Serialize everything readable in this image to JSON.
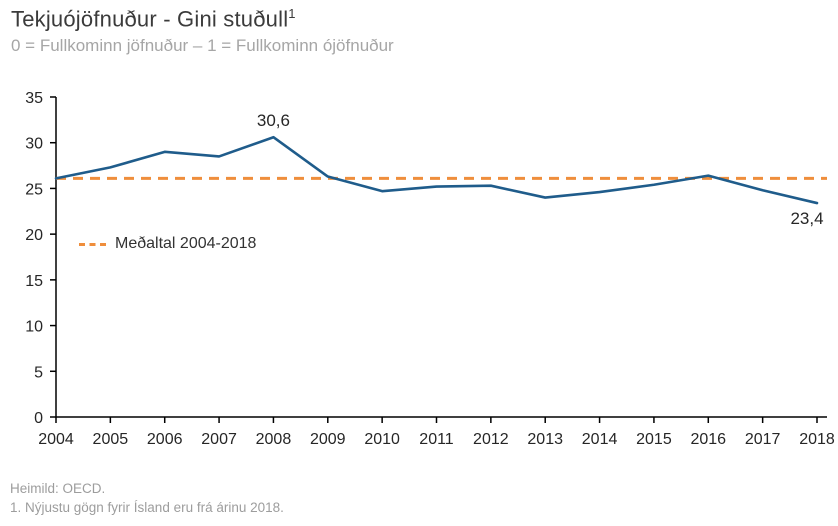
{
  "header": {
    "title": "Tekjuójöfnuður - Gini stuðull",
    "title_superscript": "1",
    "subtitle": "0 = Fullkominn jöfnuður – 1 = Fullkominn ójöfnuður"
  },
  "chart_data": {
    "type": "line",
    "title": "Tekjuójöfnuður - Gini stuðull",
    "subtitle": "0 = Fullkominn jöfnuður – 1 = Fullkominn ójöfnuður",
    "categories": [
      "2004",
      "2005",
      "2006",
      "2007",
      "2008",
      "2009",
      "2010",
      "2011",
      "2012",
      "2013",
      "2014",
      "2015",
      "2016",
      "2017",
      "2018"
    ],
    "series": [
      {
        "name": "Gini stuðull",
        "type": "line",
        "color": "#1f5c8b",
        "values": [
          26.1,
          27.3,
          29.0,
          28.5,
          30.6,
          26.3,
          24.7,
          25.2,
          25.3,
          24.0,
          24.6,
          25.4,
          26.4,
          24.8,
          23.4
        ]
      },
      {
        "name": "Meðaltal 2004-2018",
        "type": "average-dashed-line",
        "color": "#ef8e3c",
        "value": 26.1
      }
    ],
    "ylim": [
      0,
      35
    ],
    "yticks": [
      0,
      5,
      10,
      15,
      20,
      25,
      30,
      35
    ],
    "grid": false,
    "legend_position": "inside-left-middle",
    "point_labels": [
      {
        "category": "2008",
        "text": "30,6",
        "placement": "above"
      },
      {
        "category": "2018",
        "text": "23,4",
        "placement": "below"
      }
    ],
    "colors": {
      "line": "#1f5c8b",
      "average": "#ef8e3c",
      "axis": "#000000",
      "tick_labels": "#262626",
      "point_labels": "#262626",
      "title": "#3b3b3b",
      "subtitle": "#a6a6a6",
      "footer": "#9d9d9d"
    }
  },
  "footer": {
    "source": "Heimild: OECD.",
    "note": "1. Nýjustu gögn fyrir Ísland eru frá árinu 2018."
  }
}
